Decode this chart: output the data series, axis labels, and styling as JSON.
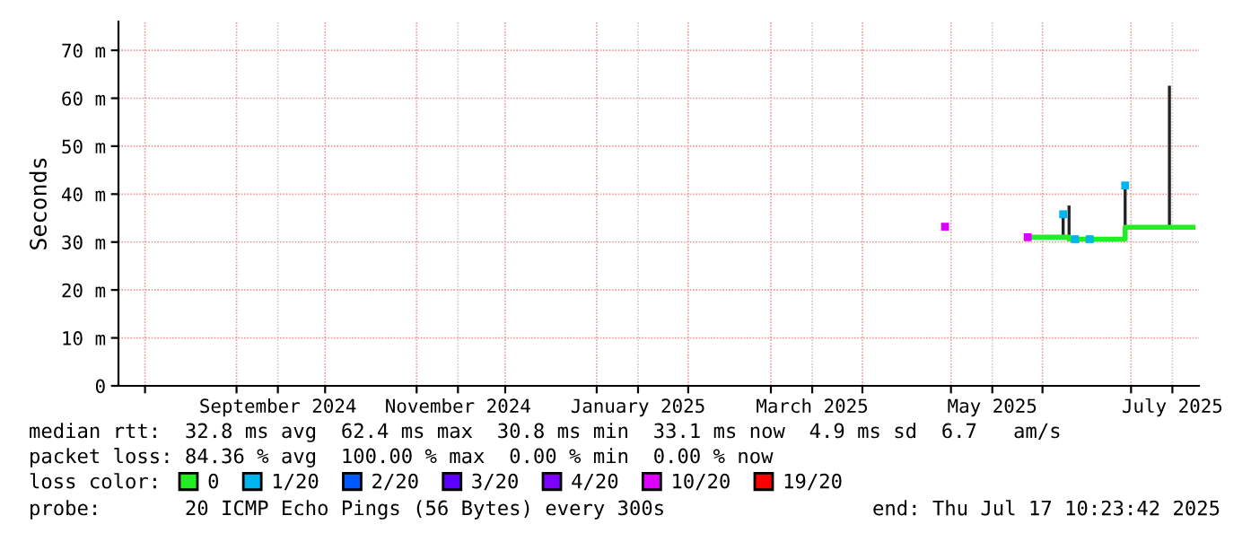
{
  "chart_data": {
    "type": "step",
    "ylabel": "Seconds",
    "legend_title": "loss color:",
    "legend": "bottom",
    "grid": true,
    "xlim": [
      "2024-07-23",
      "2025-07-24"
    ],
    "xticks": [
      {
        "value": "2024-08-01",
        "label": null
      },
      {
        "value": "2024-09-01",
        "label": null
      },
      {
        "value": "2024-09-15",
        "label": "September 2024"
      },
      {
        "value": "2024-10-01",
        "label": null
      },
      {
        "value": "2024-11-01",
        "label": null
      },
      {
        "value": "2024-11-15",
        "label": "November 2024"
      },
      {
        "value": "2024-12-01",
        "label": null
      },
      {
        "value": "2025-01-01",
        "label": null
      },
      {
        "value": "2025-01-15",
        "label": "January 2025"
      },
      {
        "value": "2025-02-01",
        "label": null
      },
      {
        "value": "2025-03-01",
        "label": null
      },
      {
        "value": "2025-03-15",
        "label": "March 2025"
      },
      {
        "value": "2025-04-01",
        "label": null
      },
      {
        "value": "2025-05-01",
        "label": null
      },
      {
        "value": "2025-05-15",
        "label": "May 2025"
      },
      {
        "value": "2025-06-01",
        "label": null
      },
      {
        "value": "2025-07-01",
        "label": null
      },
      {
        "value": "2025-07-15",
        "label": "July 2025"
      }
    ],
    "ylim": [
      0,
      76
    ],
    "yticks": [
      0,
      {
        "value": 10,
        "label": "10 m"
      },
      {
        "value": 20,
        "label": "20 m"
      },
      {
        "value": 30,
        "label": "30 m"
      },
      {
        "value": 40,
        "label": "40 m"
      },
      {
        "value": 50,
        "label": "50 m"
      },
      {
        "value": 60,
        "label": "60 m"
      },
      {
        "value": 70,
        "label": "70 m"
      }
    ],
    "series": [
      {
        "type": "line",
        "color": "#222222",
        "x": [
          "2025-06-08",
          "2025-06-08"
        ],
        "values": [
          31.0,
          35.8
        ]
      },
      {
        "type": "line",
        "color": "#222222",
        "x": [
          "2025-06-10",
          "2025-06-10"
        ],
        "values": [
          30.6,
          37.3
        ]
      },
      {
        "type": "line",
        "color": "#222222",
        "x": [
          "2025-06-29",
          "2025-06-29"
        ],
        "values": [
          32.8,
          41.8
        ]
      },
      {
        "type": "line",
        "color": "#222222",
        "x": [
          "2025-07-14",
          "2025-07-14"
        ],
        "values": [
          33.1,
          62.3
        ]
      },
      {
        "name": "0",
        "color": "#22ee22",
        "x": [
          "2025-05-27",
          "2025-06-08",
          "2025-06-10",
          "2025-06-28",
          "2025-06-29",
          "2025-07-22"
        ],
        "values": [
          31.0,
          31.0,
          30.6,
          30.6,
          33.1,
          33.1
        ]
      },
      {
        "name": "1/20",
        "type": "scatter",
        "color": "#00b4ee",
        "x": [
          "2025-06-08",
          "2025-06-12",
          "2025-06-17",
          "2025-06-29"
        ],
        "values": [
          35.8,
          30.6,
          30.6,
          41.8
        ]
      },
      {
        "name": "2/20",
        "type": "scatter",
        "color": "#0059ff"
      },
      {
        "name": "3/20",
        "type": "scatter",
        "color": "#5e00ff"
      },
      {
        "name": "4/20",
        "type": "scatter",
        "color": "#7e00ff"
      },
      {
        "name": "10/20",
        "type": "scatter",
        "color": "#dd00ff",
        "x": [
          "2025-04-29",
          "2025-05-27"
        ],
        "values": [
          33.2,
          31.0
        ]
      },
      {
        "name": "19/20",
        "type": "scatter",
        "color": "#ff0000"
      }
    ],
    "annotations": [
      "median rtt:  32.8 ms avg  62.4 ms max  30.8 ms min  33.1 ms now  4.9 ms sd  6.7   am/s",
      "packet loss: 84.36 % avg  100.00 % max  0.00 % min  0.00 % now",
      "probe:       20 ICMP Echo Pings (56 Bytes) every 300s",
      "end: Thu Jul 17 10:23:42 2025"
    ]
  }
}
